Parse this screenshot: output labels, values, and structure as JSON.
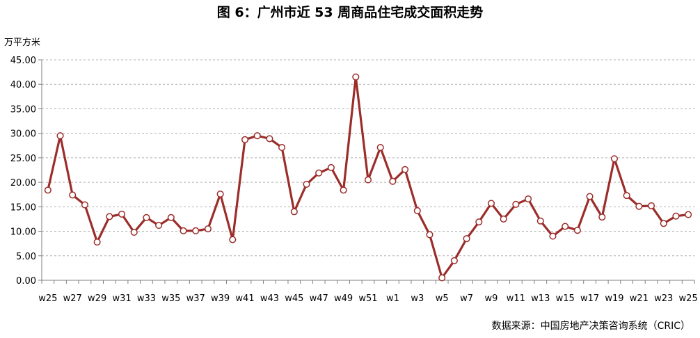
{
  "title": "图 6：广州市近 53 周商品住宅成交面积走势",
  "unit_label": "万平方米",
  "source_note": "数据来源：中国房地产决策咨询系统（CRIC）",
  "colors": {
    "line": "#9b2d2a",
    "marker_fill": "#ffffff",
    "grid": "#b0b0b0"
  },
  "chart_data": {
    "type": "line",
    "ylabel": "万平方米",
    "ylim": [
      0,
      45
    ],
    "yticks": [
      "0.00",
      "5.00",
      "10.00",
      "15.00",
      "20.00",
      "25.00",
      "30.00",
      "35.00",
      "40.00",
      "45.00"
    ],
    "grid": "horizontal dashed",
    "categories": [
      "w25",
      "w26",
      "w27",
      "w28",
      "w29",
      "w30",
      "w31",
      "w32",
      "w33",
      "w34",
      "w35",
      "w36",
      "w37",
      "w38",
      "w39",
      "w40",
      "w41",
      "w42",
      "w43",
      "w44",
      "w45",
      "w46",
      "w47",
      "w48",
      "w49",
      "w50",
      "w51",
      "w52",
      "w1",
      "w2",
      "w3",
      "w4",
      "w5",
      "w6",
      "w7",
      "w8",
      "w9",
      "w10",
      "w11",
      "w12",
      "w13",
      "w14",
      "w15",
      "w16",
      "w17",
      "w18",
      "w19",
      "w20",
      "w21",
      "w22",
      "w23",
      "w24",
      "w25"
    ],
    "xtick_labels": [
      "w25",
      "w27",
      "w29",
      "w31",
      "w33",
      "w35",
      "w37",
      "w39",
      "w41",
      "w43",
      "w45",
      "w47",
      "w49",
      "w51",
      "w1",
      "w3",
      "w5",
      "w7",
      "w9",
      "w11",
      "w13",
      "w15",
      "w17",
      "w19",
      "w21",
      "w23",
      "w25"
    ],
    "series": [
      {
        "values": [
          18.4,
          29.5,
          17.4,
          15.4,
          7.8,
          13.0,
          13.5,
          9.8,
          12.8,
          11.2,
          12.8,
          10.1,
          10.1,
          10.5,
          17.6,
          8.3,
          28.7,
          29.5,
          28.9,
          27.1,
          14.0,
          19.6,
          21.9,
          23.0,
          18.4,
          41.5,
          20.5,
          27.1,
          20.2,
          22.6,
          14.2,
          9.3,
          0.5,
          4.0,
          8.5,
          11.9,
          15.7,
          12.5,
          15.5,
          16.6,
          12.1,
          9.0,
          11.0,
          10.2,
          17.1,
          12.9,
          24.8,
          17.3,
          15.1,
          15.2,
          11.6,
          13.1,
          13.4
        ]
      }
    ]
  }
}
